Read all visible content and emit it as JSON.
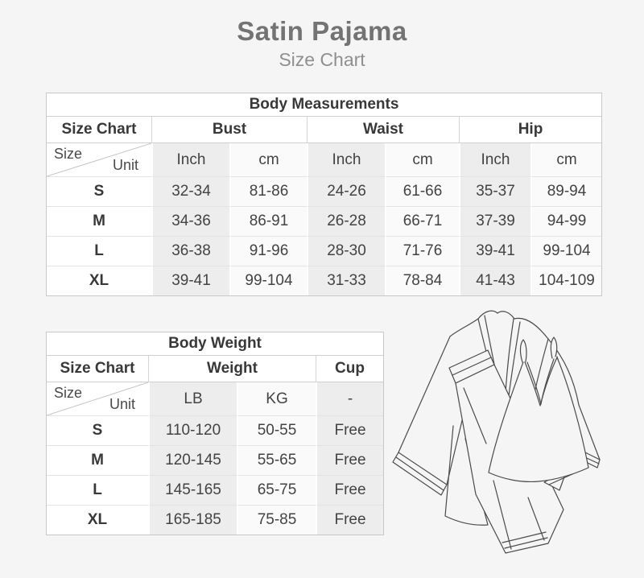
{
  "page": {
    "title": "Satin Pajama",
    "subtitle": "Size Chart",
    "background_color": "#f5f5f5",
    "shade_color": "#ededed",
    "title_color": "#737373"
  },
  "measurements_table": {
    "title": "Body Measurements",
    "corner_header": "Size Chart",
    "diagonal": {
      "top": "Size",
      "bottom": "Unit"
    },
    "groups": [
      "Bust",
      "Waist",
      "Hip"
    ],
    "units": [
      "Inch",
      "cm",
      "Inch",
      "cm",
      "Inch",
      "cm"
    ],
    "rows": [
      {
        "size": "S",
        "values": [
          "32-34",
          "81-86",
          "24-26",
          "61-66",
          "35-37",
          "89-94"
        ]
      },
      {
        "size": "M",
        "values": [
          "34-36",
          "86-91",
          "26-28",
          "66-71",
          "37-39",
          "94-99"
        ]
      },
      {
        "size": "L",
        "values": [
          "36-38",
          "91-96",
          "28-30",
          "71-76",
          "39-41",
          "99-104"
        ]
      },
      {
        "size": "XL",
        "values": [
          "39-41",
          "99-104",
          "31-33",
          "78-84",
          "41-43",
          "104-109"
        ]
      }
    ]
  },
  "weight_table": {
    "title": "Body Weight",
    "corner_header": "Size Chart",
    "diagonal": {
      "top": "Size",
      "bottom": "Unit"
    },
    "groups": [
      "Weight",
      "Cup"
    ],
    "units": [
      "LB",
      "KG",
      "-"
    ],
    "rows": [
      {
        "size": "S",
        "values": [
          "110-120",
          "50-55",
          "Free"
        ]
      },
      {
        "size": "M",
        "values": [
          "120-145",
          "55-65",
          "Free"
        ]
      },
      {
        "size": "L",
        "values": [
          "145-165",
          "65-75",
          "Free"
        ]
      },
      {
        "size": "XL",
        "values": [
          "165-185",
          "75-85",
          "Free"
        ]
      }
    ]
  },
  "illustration": {
    "name": "satin-pajama-line-art"
  }
}
